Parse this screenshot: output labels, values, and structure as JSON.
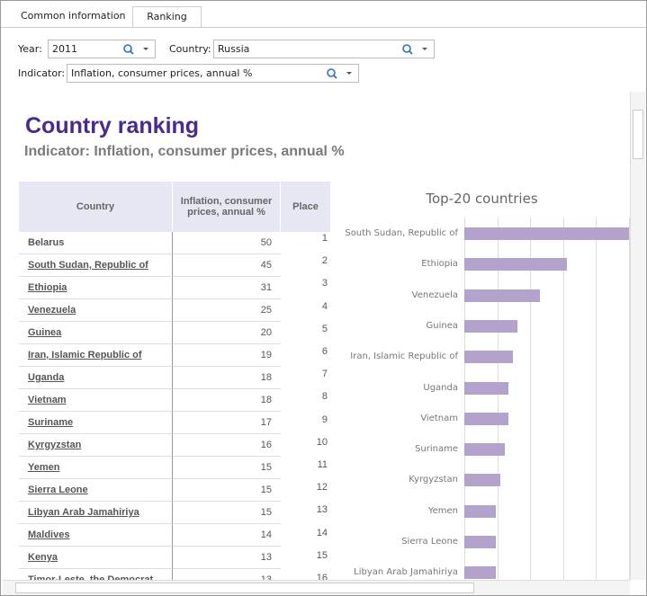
{
  "tabs": [
    "Common information",
    "Ranking"
  ],
  "filters": {
    "year_label": "Year:",
    "year": "2011",
    "country_label": "Country:",
    "country": "Russia",
    "indicator_label": "Indicator:",
    "indicator": "Inflation, consumer prices, annual %"
  },
  "report": {
    "title": "Country ranking",
    "subtitle": "Indicator: Inflation, consumer prices, annual %"
  },
  "table": {
    "columns": [
      "Country",
      "Inflation, consumer prices, annual %",
      "Place"
    ],
    "rows": [
      [
        "Belarus",
        50,
        1
      ],
      [
        "South Sudan, Republic of",
        45,
        2
      ],
      [
        "Ethiopia",
        31,
        3
      ],
      [
        "Venezuela",
        25,
        4
      ],
      [
        "Guinea",
        20,
        5
      ],
      [
        "Iran, Islamic Republic of",
        19,
        6
      ],
      [
        "Uganda",
        18,
        7
      ],
      [
        "Vietnam",
        18,
        8
      ],
      [
        "Suriname",
        17,
        9
      ],
      [
        "Kyrgyzstan",
        16,
        10
      ],
      [
        "Yemen",
        15,
        11
      ],
      [
        "Sierra Leone",
        15,
        12
      ],
      [
        "Libyan Arab Jamahiriya",
        15,
        13
      ],
      [
        "Maldives",
        14,
        14
      ],
      [
        "Kenya",
        13,
        15
      ],
      [
        "Timor-Leste, the Democrat",
        13,
        16
      ]
    ]
  },
  "chart_data": {
    "type": "bar",
    "orientation": "horizontal",
    "title": "Top-20 countries",
    "color": "#b3a2cc",
    "categories": [
      "South Sudan, Republic of",
      "Ethiopia",
      "Venezuela",
      "Guinea",
      "Iran, Islamic Republic of",
      "Uganda",
      "Vietnam",
      "Suriname",
      "Kyrgyzstan",
      "Yemen",
      "Sierra Leone",
      "Libyan Arab Jamahiriya"
    ],
    "values": [
      45,
      31,
      25,
      20,
      19,
      18,
      18,
      17,
      16,
      15,
      15,
      15
    ],
    "xlim": [
      8,
      45
    ]
  }
}
